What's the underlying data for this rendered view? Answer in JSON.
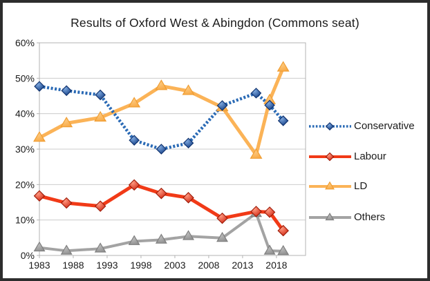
{
  "figure": {
    "title": "Results of Oxford West & Abingdon (Commons seat)"
  },
  "style": {
    "background": "#ffffff",
    "frame_border": "#2d2d2d",
    "grid_color": "#cccccc",
    "plot_border_color": "#b3b3b3",
    "text_color": "#1a1a1a"
  },
  "chart_data": {
    "type": "line",
    "title": "Results of Oxford West & Abingdon (Commons seat)",
    "xlabel": "",
    "ylabel": "",
    "x": [
      1983,
      1987,
      1992,
      1997,
      2001,
      2005,
      2010,
      2015,
      2017,
      2019
    ],
    "series": [
      {
        "name": "Conservative",
        "values": [
          47.7,
          46.5,
          45.3,
          32.5,
          30.0,
          31.7,
          42.3,
          45.8,
          42.4,
          38.0
        ],
        "color": "#2a6ab5",
        "line_style": "dotted",
        "line_width": 4.5,
        "marker": "diamond",
        "marker_size": 7,
        "marker_light": "#7fa9de",
        "marker_dark": "#123d85",
        "marker_stroke": "#0d2f6b"
      },
      {
        "name": "Labour",
        "values": [
          16.8,
          14.8,
          13.9,
          19.9,
          17.5,
          16.3,
          10.5,
          12.4,
          12.2,
          7.0
        ],
        "color": "#f13a17",
        "line_style": "solid",
        "line_width": 5,
        "marker": "diamond",
        "marker_size": 7.5,
        "marker_light": "#ff9b82",
        "marker_dark": "#d02511",
        "marker_stroke": "#9c1a07"
      },
      {
        "name": "LD",
        "values": [
          33.2,
          37.3,
          38.9,
          42.9,
          47.8,
          46.4,
          41.8,
          28.4,
          43.8,
          53.0
        ],
        "color": "#fbb357",
        "line_style": "solid",
        "line_width": 5,
        "marker": "triangle",
        "marker_size": 8,
        "marker_light": "#fdc97f",
        "marker_dark": "#f8a945",
        "marker_stroke": "#ef9c30"
      },
      {
        "name": "Others",
        "values": [
          2.2,
          1.3,
          1.9,
          4.0,
          4.4,
          5.4,
          4.9,
          11.9,
          1.3,
          1.2
        ],
        "color": "#a3a3a3",
        "line_style": "solid",
        "line_width": 4,
        "marker": "triangle",
        "marker_size": 7.5,
        "marker_light": "#bdbdbd",
        "marker_dark": "#8f8f8f",
        "marker_stroke": "#7d7d7d"
      }
    ],
    "xticks": [
      1983,
      1988,
      1993,
      1998,
      2003,
      2008,
      2013,
      2018
    ],
    "yticks": [
      {
        "value": 0,
        "label": "0%"
      },
      {
        "value": 10,
        "label": "10%"
      },
      {
        "value": 20,
        "label": "20%"
      },
      {
        "value": 30,
        "label": "30%"
      },
      {
        "value": 40,
        "label": "40%"
      },
      {
        "value": 50,
        "label": "50%"
      },
      {
        "value": 60,
        "label": "60%"
      }
    ],
    "ylim": [
      0,
      60
    ],
    "xlim": [
      1983,
      2022.3
    ],
    "grid": true,
    "legend_position": "right",
    "legend": [
      "Conservative",
      "Labour",
      "LD",
      "Others"
    ]
  }
}
